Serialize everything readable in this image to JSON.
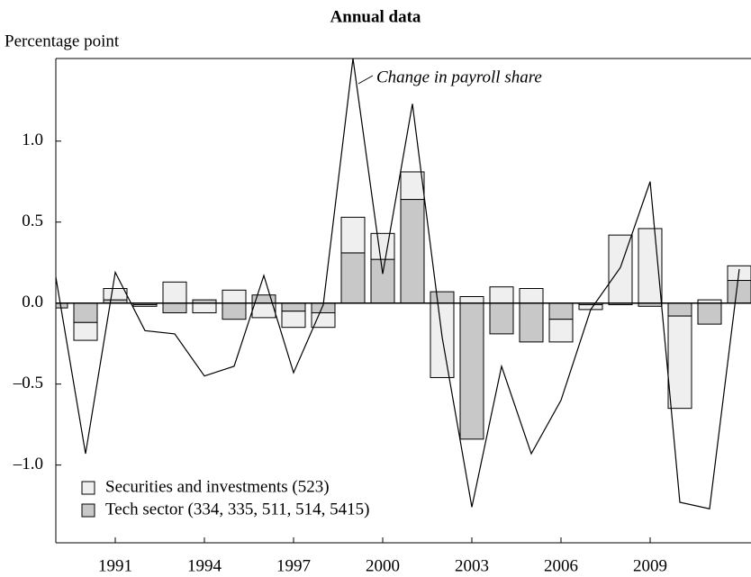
{
  "chart_data": {
    "type": "bar",
    "title": "Annual data",
    "ylabel": "Percentage point",
    "categories": [
      null,
      null,
      "1991",
      null,
      null,
      "1994",
      null,
      null,
      "1997",
      null,
      null,
      "2000",
      null,
      null,
      "2003",
      null,
      null,
      "2006",
      null,
      null,
      "2009",
      null,
      null,
      null
    ],
    "series": [
      {
        "name": "Tech sector (334, 335, 511, 514, 5415)",
        "color": "#c8c8c8",
        "values": [
          -0.03,
          -0.12,
          0.02,
          -0.01,
          -0.06,
          0.02,
          -0.1,
          0.05,
          -0.05,
          -0.06,
          0.31,
          0.27,
          0.64,
          0.07,
          -0.84,
          -0.19,
          -0.24,
          -0.1,
          -0.01,
          -0.01,
          -0.02,
          -0.08,
          -0.13,
          0.14
        ]
      },
      {
        "name": "Securities and investments (523)",
        "color": "#efefef",
        "values": [
          0,
          -0.11,
          0.07,
          -0.01,
          0.13,
          -0.06,
          0.08,
          -0.09,
          -0.1,
          -0.09,
          0.22,
          0.16,
          0.17,
          -0.46,
          0.04,
          0.1,
          0.09,
          -0.14,
          -0.03,
          0.42,
          0.46,
          -0.57,
          0.02,
          0.09
        ]
      },
      {
        "name": "Change in payroll share",
        "type": "line",
        "color": "#000000",
        "values": [
          0.16,
          -0.93,
          0.19,
          -0.17,
          -0.19,
          -0.45,
          -0.39,
          0.17,
          -0.43,
          -0.01,
          1.51,
          0.18,
          1.23,
          -0.21,
          -1.26,
          -0.39,
          -0.93,
          -0.6,
          -0.04,
          0.22,
          0.75,
          -1.23,
          -1.27,
          0.21
        ]
      }
    ],
    "ylim": [
      -1.48,
      1.51
    ],
    "yticks": [
      {
        "value": -1.0,
        "label": "–1.0"
      },
      {
        "value": -0.5,
        "label": "–0.5"
      },
      {
        "value": 0,
        "label": "0.0"
      },
      {
        "value": 0.5,
        "label": "0.5"
      },
      {
        "value": 1.0,
        "label": "1.0"
      }
    ],
    "legend": "lower left"
  }
}
